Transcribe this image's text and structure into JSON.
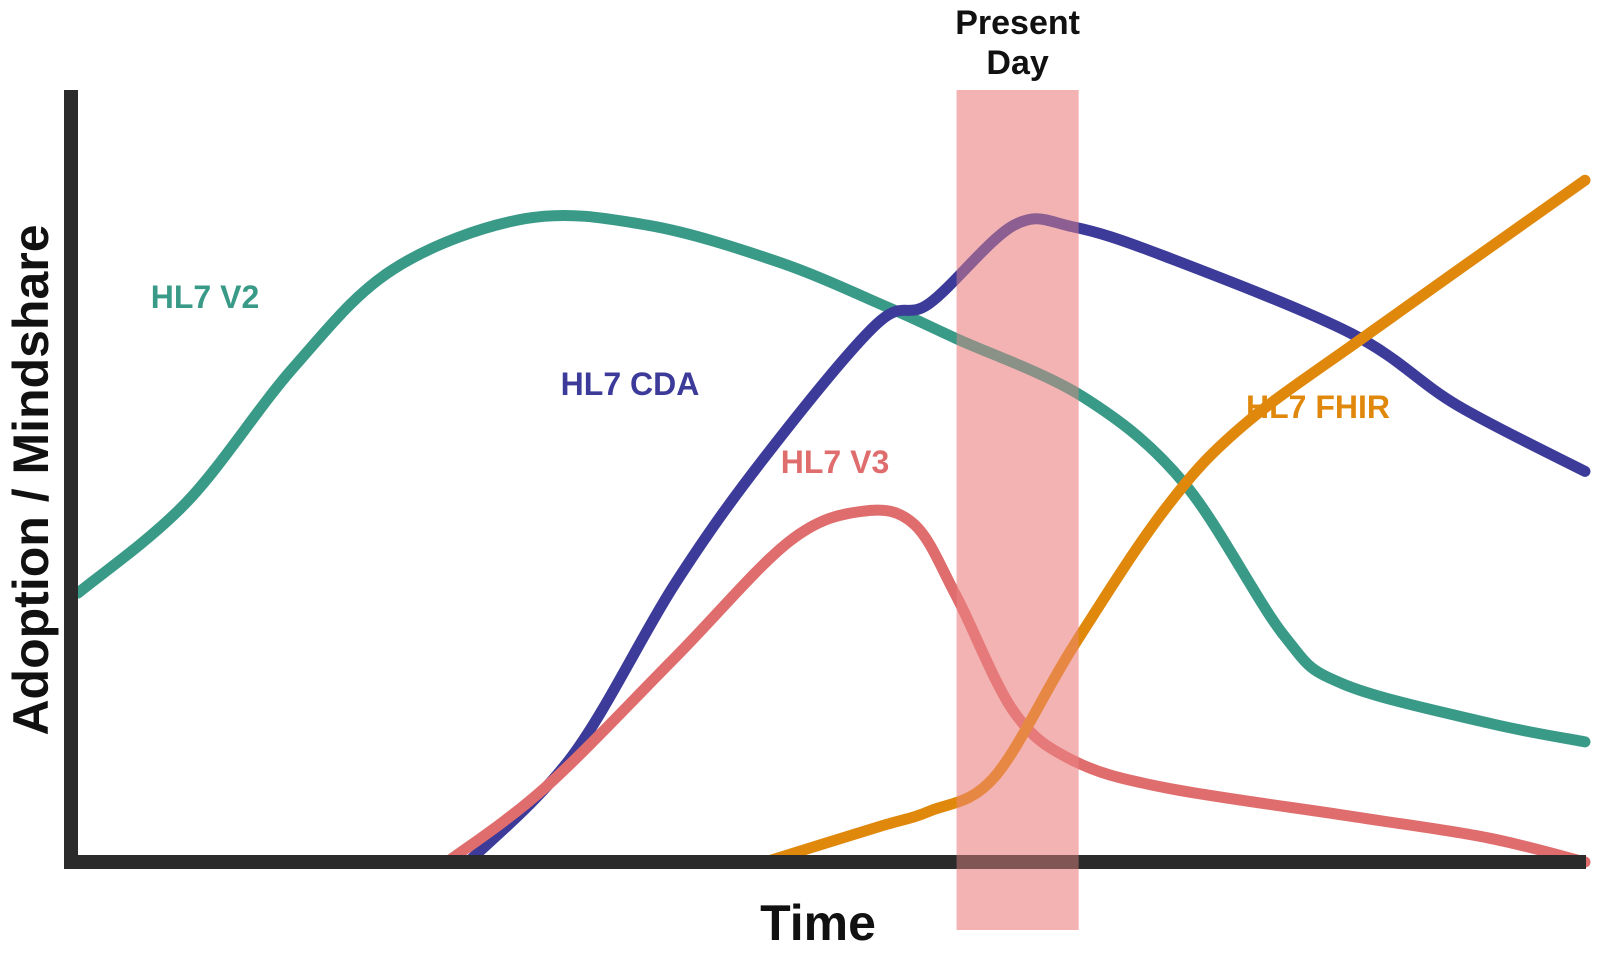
{
  "chart_data": {
    "type": "line",
    "title": "",
    "xlabel": "Time",
    "ylabel": "Adoption / Mindshare",
    "xlim": [
      0,
      100
    ],
    "ylim": [
      0,
      100
    ],
    "grid": false,
    "legend": "none",
    "highlight": {
      "label_line1": "Present",
      "label_line2": "Day",
      "x_start": 58.3,
      "x_end": 66.4,
      "color": "#ee8a8a"
    },
    "series": [
      {
        "name": "HL7 V2",
        "color": "#3a9a88",
        "x": [
          0,
          7.2,
          14.3,
          20.9,
          29.7,
          37.8,
          46.5,
          53.7,
          58.3,
          66.7,
          73.4,
          80.0,
          83.9,
          93.5,
          100
        ],
        "y": [
          36.5,
          48.8,
          67.1,
          80.4,
          87.3,
          86.4,
          81.4,
          75.3,
          71.0,
          63.1,
          51.4,
          30.8,
          24.2,
          18.9,
          16.3
        ]
      },
      {
        "name": "HL7 CDA",
        "color": "#3c3b9a",
        "x": [
          25.9,
          32.8,
          39.6,
          45.6,
          53.0,
          56.5,
          62.1,
          66.0,
          72.1,
          84.5,
          91.5,
          100
        ],
        "y": [
          0,
          14.4,
          37.7,
          55.0,
          73.0,
          75.8,
          86.4,
          86.2,
          82.2,
          71.7,
          62.0,
          53.0
        ]
      },
      {
        "name": "HL7 V3",
        "color": "#e06d6d",
        "x": [
          24.5,
          31.0,
          39.6,
          47.2,
          52.1,
          55.5,
          58.3,
          62.1,
          66.0,
          72.1,
          84.5,
          93.5,
          100
        ],
        "y": [
          0,
          10.1,
          27.7,
          43.5,
          47.6,
          45.8,
          36.0,
          20.4,
          13.8,
          10.1,
          6.2,
          3.3,
          0
        ]
      },
      {
        "name": "HL7 FHIR",
        "color": "#e0880c",
        "x": [
          45.6,
          53.0,
          56.5,
          60.8,
          66.0,
          72.1,
          77.3,
          86.0,
          100
        ],
        "y": [
          0,
          4.7,
          6.9,
          11.5,
          29.1,
          47.8,
          59.2,
          72.2,
          92.5
        ]
      }
    ],
    "annotations": [
      {
        "text": "HL7 V2",
        "series": "HL7 V2"
      },
      {
        "text": "HL7 CDA",
        "series": "HL7 CDA"
      },
      {
        "text": "HL7 V3",
        "series": "HL7 V3"
      },
      {
        "text": "HL7 FHIR",
        "series": "HL7 FHIR"
      }
    ]
  }
}
